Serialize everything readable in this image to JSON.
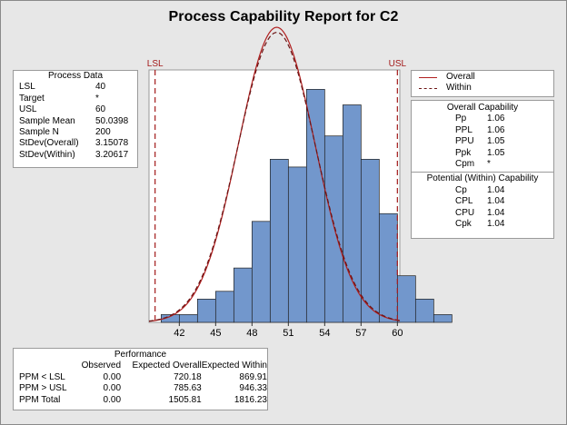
{
  "title": "Process Capability Report for C2",
  "process_data": {
    "heading": "Process Data",
    "rows": [
      {
        "label": "LSL",
        "value": "40"
      },
      {
        "label": "Target",
        "value": "*"
      },
      {
        "label": "USL",
        "value": "60"
      },
      {
        "label": "Sample Mean",
        "value": "50.0398"
      },
      {
        "label": "Sample N",
        "value": "200"
      },
      {
        "label": "StDev(Overall)",
        "value": "3.15078"
      },
      {
        "label": "StDev(Within)",
        "value": "3.20617"
      }
    ]
  },
  "legend": {
    "overall": "Overall",
    "within": "Within"
  },
  "overall_capability": {
    "heading": "Overall Capability",
    "rows": [
      {
        "label": "Pp",
        "value": "1.06"
      },
      {
        "label": "PPL",
        "value": "1.06"
      },
      {
        "label": "PPU",
        "value": "1.05"
      },
      {
        "label": "Ppk",
        "value": "1.05"
      },
      {
        "label": "Cpm",
        "value": "*"
      }
    ]
  },
  "within_capability": {
    "heading": "Potential (Within) Capability",
    "rows": [
      {
        "label": "Cp",
        "value": "1.04"
      },
      {
        "label": "CPL",
        "value": "1.04"
      },
      {
        "label": "CPU",
        "value": "1.04"
      },
      {
        "label": "Cpk",
        "value": "1.04"
      }
    ]
  },
  "performance": {
    "heading": "Performance",
    "columns": [
      "",
      "Observed",
      "Expected Overall",
      "Expected Within"
    ],
    "rows": [
      {
        "label": "PPM < LSL",
        "observed": "0.00",
        "expected_overall": "720.18",
        "expected_within": "869.91"
      },
      {
        "label": "PPM > USL",
        "observed": "0.00",
        "expected_overall": "785.63",
        "expected_within": "946.33"
      },
      {
        "label": "PPM Total",
        "observed": "0.00",
        "expected_overall": "1505.81",
        "expected_within": "1816.23"
      }
    ]
  },
  "colors": {
    "bar_fill": "#7297cc",
    "bar_edge": "#1f1f1f",
    "spec_line": "#a31a1a",
    "curve_overall": "#b01e1e",
    "curve_within": "#6b1414",
    "background": "#e7e7e7"
  },
  "chart_data": {
    "type": "bar",
    "title": "Process Capability Report for C2",
    "bin_width": 1.5,
    "bin_start": 40.5,
    "bin_counts": [
      1,
      1,
      3,
      4,
      7,
      13,
      21,
      20,
      30,
      24,
      28,
      21,
      14,
      6,
      3,
      1
    ],
    "xlim": [
      39.5,
      60.2
    ],
    "x_ticks": [
      42,
      45,
      48,
      51,
      54,
      57,
      60
    ],
    "ylim": [
      0,
      32.5
    ],
    "lsl": 40,
    "usl": 60,
    "lsl_label": "LSL",
    "usl_label": "USL",
    "mean": 50.0398,
    "n": 200,
    "stdev_overall": 3.15078,
    "stdev_within": 3.20617,
    "series": [
      {
        "name": "Overall",
        "style": "solid"
      },
      {
        "name": "Within",
        "style": "dashed"
      }
    ],
    "legend_position": "right"
  }
}
